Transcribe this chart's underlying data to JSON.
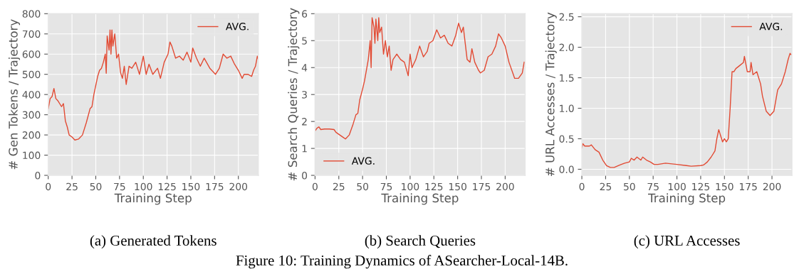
{
  "chart_data": [
    {
      "type": "line",
      "subtitle": "(a) Generated Tokens",
      "xlabel": "Training Step",
      "ylabel": "# Gen Tokens / Trajectory",
      "xlim": [
        0,
        221
      ],
      "xticks": [
        0,
        25,
        50,
        75,
        100,
        125,
        150,
        175,
        200
      ],
      "ylim": [
        0,
        800
      ],
      "yticks": [
        0,
        100,
        200,
        300,
        400,
        500,
        600,
        700,
        800
      ],
      "grid": true,
      "legend": "top right",
      "series": [
        {
          "name": "AVG.",
          "color": "#e24a33",
          "x": [
            0,
            2,
            4,
            6,
            8,
            10,
            14,
            16,
            18,
            20,
            22,
            25,
            28,
            32,
            36,
            40,
            44,
            46,
            48,
            52,
            54,
            56,
            58,
            60,
            61,
            62,
            64,
            65,
            66,
            67,
            68,
            70,
            72,
            74,
            76,
            78,
            80,
            82,
            85,
            88,
            92,
            96,
            100,
            103,
            106,
            110,
            115,
            118,
            122,
            126,
            128,
            130,
            134,
            138,
            142,
            146,
            150,
            152,
            156,
            160,
            164,
            170,
            176,
            180,
            184,
            188,
            192,
            196,
            200,
            204,
            206,
            210,
            214,
            216,
            218,
            220,
            221
          ],
          "values": [
            330,
            380,
            390,
            430,
            380,
            370,
            340,
            355,
            270,
            240,
            200,
            190,
            175,
            180,
            200,
            260,
            330,
            340,
            400,
            490,
            520,
            530,
            560,
            600,
            505,
            690,
            620,
            720,
            600,
            720,
            640,
            700,
            580,
            600,
            510,
            480,
            540,
            450,
            540,
            530,
            560,
            500,
            590,
            500,
            550,
            500,
            530,
            480,
            560,
            600,
            660,
            640,
            580,
            590,
            570,
            610,
            560,
            630,
            580,
            540,
            580,
            530,
            500,
            530,
            600,
            580,
            590,
            550,
            520,
            480,
            500,
            500,
            490,
            520,
            540,
            590,
            575
          ]
        }
      ]
    },
    {
      "type": "line",
      "subtitle": "(b) Search Queries",
      "xlabel": "Training Step",
      "ylabel": "# Search Queries / Trajectory",
      "xlim": [
        0,
        221
      ],
      "xticks": [
        0,
        25,
        50,
        75,
        100,
        125,
        150,
        175,
        200
      ],
      "ylim": [
        0,
        6
      ],
      "yticks": [
        0,
        1,
        2,
        3,
        4,
        5,
        6
      ],
      "grid": true,
      "legend": "bottom left",
      "annotations": [
        "Figure 10: Training Dynamics of ASearcher-Local-14B."
      ],
      "series": [
        {
          "name": "AVG.",
          "color": "#e24a33",
          "x": [
            0,
            2,
            4,
            6,
            10,
            15,
            20,
            22,
            26,
            30,
            32,
            36,
            40,
            43,
            45,
            47,
            50,
            52,
            54,
            56,
            58,
            59,
            60,
            62,
            63,
            64,
            66,
            67,
            68,
            70,
            72,
            74,
            76,
            78,
            80,
            82,
            86,
            90,
            94,
            98,
            100,
            102,
            106,
            110,
            114,
            118,
            120,
            124,
            128,
            132,
            136,
            140,
            144,
            148,
            151,
            154,
            156,
            158,
            160,
            163,
            165,
            168,
            172,
            174,
            178,
            182,
            186,
            190,
            193,
            196,
            200,
            204,
            208,
            210,
            214,
            218,
            220
          ],
          "values": [
            1.65,
            1.75,
            1.8,
            1.7,
            1.72,
            1.72,
            1.7,
            1.6,
            1.5,
            1.4,
            1.35,
            1.5,
            1.9,
            2.25,
            2.3,
            2.8,
            3.2,
            3.5,
            3.9,
            4.3,
            5.0,
            4.0,
            5.85,
            5.5,
            4.9,
            5.8,
            5.0,
            5.85,
            5.3,
            5.5,
            4.5,
            5.0,
            4.4,
            4.8,
            3.9,
            4.3,
            4.5,
            4.3,
            4.2,
            3.7,
            4.5,
            4.0,
            4.3,
            4.8,
            4.4,
            4.6,
            4.9,
            5.0,
            5.4,
            5.1,
            5.2,
            4.9,
            4.8,
            5.2,
            5.65,
            5.3,
            5.5,
            4.9,
            4.3,
            4.2,
            4.7,
            4.2,
            3.9,
            3.8,
            3.9,
            4.4,
            4.5,
            4.8,
            5.25,
            5.1,
            4.8,
            4.2,
            3.8,
            3.6,
            3.6,
            3.8,
            4.2
          ]
        }
      ]
    },
    {
      "type": "line",
      "subtitle": "(c) URL Accesses",
      "xlabel": "Training Step",
      "ylabel": "# URL Accesses / Trajectory",
      "xlim": [
        0,
        221
      ],
      "xticks": [
        0,
        25,
        50,
        75,
        100,
        125,
        150,
        175,
        200
      ],
      "ylim": [
        -0.1,
        2.55
      ],
      "yticks": [
        {
          "value": 0,
          "label": "0.0"
        },
        0.5,
        {
          "value": 1,
          "label": "1.0"
        },
        1.5,
        {
          "value": 2,
          "label": "2.0"
        },
        2.5
      ],
      "grid": true,
      "legend": "top right",
      "series": [
        {
          "name": "AVG.",
          "color": "#e24a33",
          "x": [
            0,
            1,
            3,
            8,
            10,
            14,
            18,
            22,
            26,
            30,
            34,
            40,
            45,
            50,
            52,
            55,
            58,
            62,
            64,
            68,
            72,
            76,
            80,
            88,
            100,
            110,
            115,
            125,
            128,
            132,
            136,
            140,
            142,
            144,
            146,
            148,
            150,
            152,
            154,
            156,
            158,
            160,
            162,
            166,
            170,
            171,
            174,
            177,
            178,
            180,
            184,
            188,
            190,
            194,
            198,
            202,
            206,
            210,
            214,
            217,
            219,
            220
          ],
          "values": [
            0.35,
            0.42,
            0.38,
            0.38,
            0.4,
            0.32,
            0.28,
            0.15,
            0.06,
            0.03,
            0.03,
            0.07,
            0.1,
            0.12,
            0.18,
            0.15,
            0.2,
            0.15,
            0.2,
            0.15,
            0.12,
            0.08,
            0.08,
            0.1,
            0.08,
            0.06,
            0.05,
            0.06,
            0.07,
            0.12,
            0.2,
            0.3,
            0.5,
            0.65,
            0.55,
            0.45,
            0.5,
            0.45,
            0.5,
            1.0,
            1.6,
            1.6,
            1.65,
            1.7,
            1.75,
            1.85,
            1.6,
            1.6,
            1.75,
            1.55,
            1.6,
            1.4,
            1.2,
            0.95,
            0.88,
            0.95,
            1.3,
            1.4,
            1.6,
            1.8,
            1.9,
            1.88
          ]
        }
      ]
    }
  ]
}
